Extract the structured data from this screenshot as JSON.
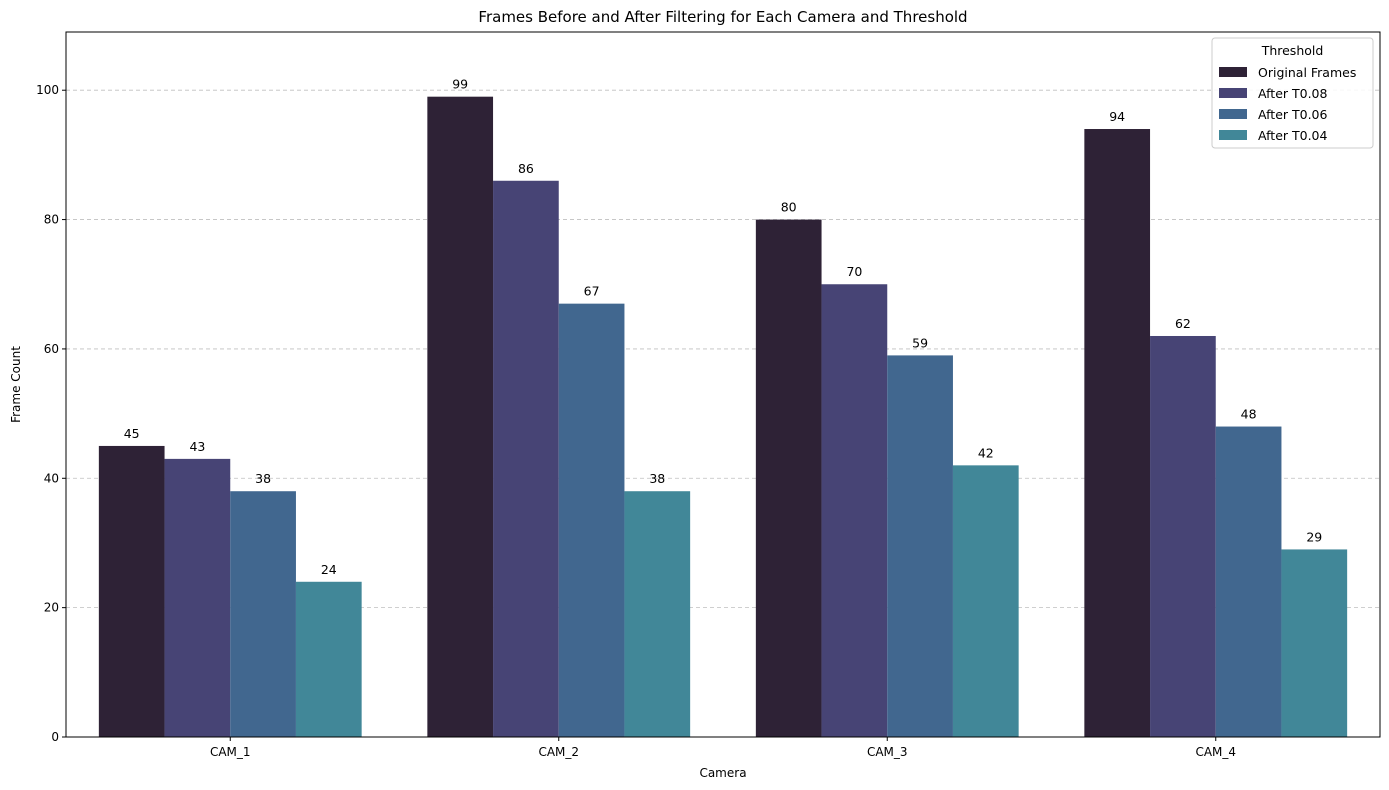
{
  "chart_data": {
    "type": "bar",
    "title": "Frames Before and After Filtering for Each Camera and Threshold",
    "xlabel": "Camera",
    "ylabel": "Frame Count",
    "categories": [
      "CAM_1",
      "CAM_2",
      "CAM_3",
      "CAM_4"
    ],
    "ylim": [
      0,
      109
    ],
    "yticks": [
      0,
      20,
      40,
      60,
      80,
      100
    ],
    "grid": "horizontal dashed",
    "legend": {
      "title": "Threshold",
      "placement": "top-right"
    },
    "series": [
      {
        "name": "Original Frames",
        "color": "#2e2236",
        "values": [
          45,
          99,
          80,
          94
        ]
      },
      {
        "name": "After T0.08",
        "color": "#474475",
        "values": [
          43,
          86,
          70,
          62
        ]
      },
      {
        "name": "After T0.06",
        "color": "#41678f",
        "values": [
          38,
          67,
          59,
          48
        ]
      },
      {
        "name": "After T0.04",
        "color": "#418798",
        "values": [
          24,
          38,
          42,
          29
        ]
      }
    ]
  }
}
